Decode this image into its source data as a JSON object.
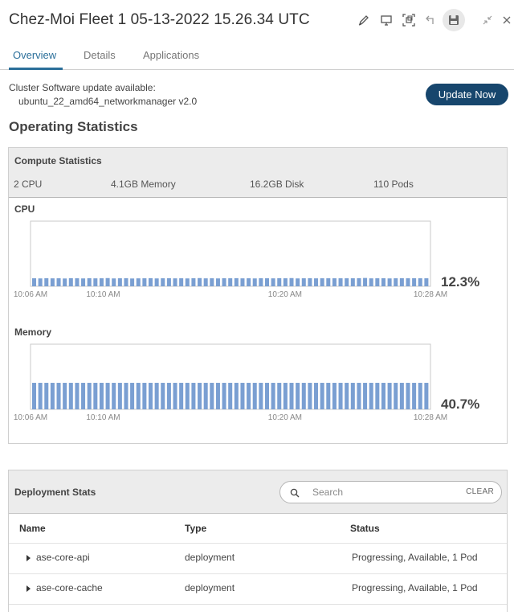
{
  "header": {
    "title": "Chez-Moi Fleet 1 05-13-2022 15.26.34 UTC",
    "icons": [
      "edit-icon",
      "monitor-icon",
      "fit-screen-icon",
      "undo-icon",
      "save-icon",
      "collapse-icon",
      "close-icon"
    ]
  },
  "tabs": [
    {
      "label": "Overview",
      "active": true
    },
    {
      "label": "Details",
      "active": false
    },
    {
      "label": "Applications",
      "active": false
    }
  ],
  "update": {
    "message": "Cluster Software update available:",
    "package": "ubuntu_22_amd64_networkmanager v2.0",
    "button_label": "Update Now"
  },
  "section_title": "Operating Statistics",
  "compute": {
    "title": "Compute Statistics",
    "stats": [
      "2 CPU",
      "4.1GB Memory",
      "16.2GB Disk",
      "110 Pods"
    ]
  },
  "cpu_chart": {
    "label": "CPU",
    "current_pct": "12.3%",
    "x_labels": [
      "10:06 AM",
      "10:10 AM",
      "10:20 AM",
      "10:28 AM"
    ],
    "bar_color": "#7a9fd2"
  },
  "memory_chart": {
    "label": "Memory",
    "current_pct": "40.7%",
    "x_labels": [
      "10:06 AM",
      "10:10 AM",
      "10:20 AM",
      "10:28 AM"
    ],
    "bar_color": "#7a9fd2"
  },
  "chart_data": [
    {
      "type": "bar",
      "title": "CPU",
      "x_start": "10:06 AM",
      "x_end": "10:28 AM",
      "x_ticks": [
        "10:06 AM",
        "10:10 AM",
        "10:20 AM",
        "10:28 AM"
      ],
      "ylim": [
        0,
        100
      ],
      "values": [
        12.3,
        12.1,
        12.4,
        12.2,
        12.3,
        12.0,
        12.5,
        12.3,
        12.1,
        12.4,
        12.2,
        12.3,
        12.6,
        12.1,
        12.3,
        12.4,
        12.0,
        12.2,
        12.3,
        12.5,
        12.1,
        12.3,
        12.4,
        12.2,
        12.3,
        12.1,
        12.4,
        12.6,
        12.2,
        12.3,
        12.1,
        12.4,
        12.3,
        12.5,
        12.2,
        12.3,
        12.1,
        12.4,
        12.3,
        12.2,
        12.5,
        12.3,
        12.6,
        12.1,
        12.3,
        12.4,
        12.2,
        12.3,
        12.3,
        12.3,
        12.3,
        12.3,
        12.3,
        12.5,
        12.8,
        12.2,
        12.3,
        12.4,
        12.1,
        12.3,
        12.4,
        12.3,
        12.4,
        12.3,
        12.3
      ],
      "current_label": "12.3%"
    },
    {
      "type": "bar",
      "title": "Memory",
      "x_start": "10:06 AM",
      "x_end": "10:28 AM",
      "x_ticks": [
        "10:06 AM",
        "10:10 AM",
        "10:20 AM",
        "10:28 AM"
      ],
      "ylim": [
        0,
        100
      ],
      "values": [
        40.7,
        40.7,
        40.7,
        40.7,
        40.7,
        40.7,
        40.7,
        40.7,
        40.7,
        40.7,
        40.7,
        40.7,
        40.7,
        40.7,
        40.7,
        40.7,
        40.7,
        40.7,
        40.7,
        40.7,
        40.7,
        40.7,
        40.7,
        40.7,
        40.7,
        40.7,
        40.7,
        40.7,
        40.7,
        40.7,
        40.7,
        40.7,
        40.7,
        40.7,
        40.7,
        40.7,
        40.7,
        40.7,
        40.7,
        40.7,
        40.7,
        40.7,
        40.7,
        40.7,
        40.7,
        40.7,
        40.7,
        40.7,
        40.7,
        40.7,
        40.7,
        40.7,
        40.7,
        40.7,
        40.7,
        40.7,
        40.7,
        40.7,
        40.7,
        40.7,
        40.7,
        40.7,
        40.7,
        40.7,
        40.7
      ],
      "current_label": "40.7%"
    }
  ],
  "deployment": {
    "title": "Deployment Stats",
    "search_placeholder": "Search",
    "clear_label": "CLEAR",
    "columns": [
      "Name",
      "Type",
      "Status"
    ],
    "rows": [
      {
        "name": "ase-core-api",
        "type": "deployment",
        "status": "Progressing, Available, 1 Pod"
      },
      {
        "name": "ase-core-cache",
        "type": "deployment",
        "status": "Progressing, Available, 1 Pod"
      }
    ]
  },
  "colors": {
    "accent": "#2b6f9a",
    "button_bg": "#17466d",
    "bar": "#7a9fd2"
  }
}
